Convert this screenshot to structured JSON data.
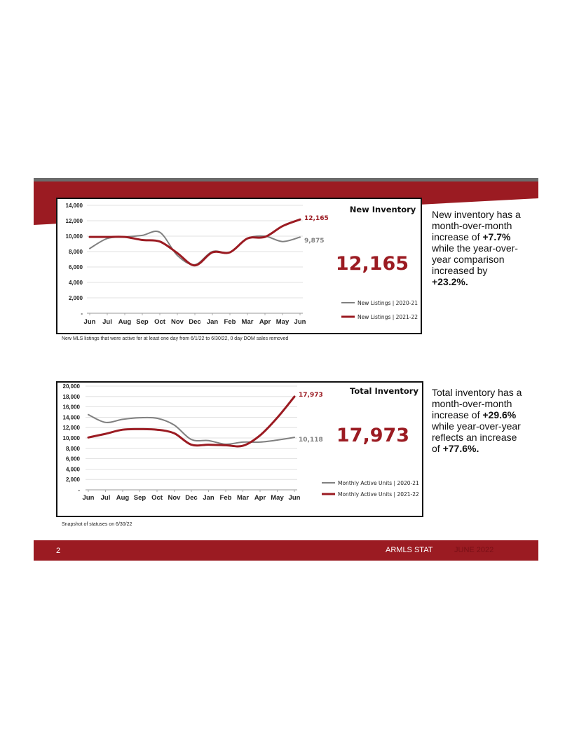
{
  "colors": {
    "accent": "#9b1b22",
    "prior_year": "#808080",
    "footer_date": "#7a1016"
  },
  "charts": [
    {
      "title": "New Inventory",
      "big_number": "12,165",
      "last_label_current": "12,165",
      "last_label_prior": "9,875",
      "note": "New MLS listings that were active for at least one day from 6/1/22 to 6/30/22, 0 day DOM sales removed",
      "commentary": {
        "pre1": "New inventory has a month-over-month increase of ",
        "val1": "+7.7%",
        "mid": " while the year-over-year comparison increased by ",
        "val2": "+23.2%.",
        "post": ""
      },
      "y_tick_labels": [
        "-",
        "2,000",
        "4,000",
        "6,000",
        "8,000",
        "10,000",
        "12,000",
        "14,000"
      ]
    },
    {
      "title": "Total Inventory",
      "big_number": "17,973",
      "last_label_current": "17,973",
      "last_label_prior": "10,118",
      "note": "Snapshot of statuses on 6/30/22",
      "commentary": {
        "pre1": "Total inventory has a month-over-month increase of ",
        "val1": "+29.6%",
        "mid": " while year-over-year reflects an increase of ",
        "val2": "+77.6%.",
        "post": ""
      },
      "y_tick_labels": [
        "-",
        "2,000",
        "4,000",
        "6,000",
        "8,000",
        "10,000",
        "12,000",
        "14,000",
        "16,000",
        "18,000",
        "20,000"
      ]
    }
  ],
  "chart_data": [
    {
      "type": "line",
      "title": "New Inventory",
      "categories": [
        "Jun",
        "Jul",
        "Aug",
        "Sep",
        "Oct",
        "Nov",
        "Dec",
        "Jan",
        "Feb",
        "Mar",
        "Apr",
        "May",
        "Jun"
      ],
      "ylim": [
        0,
        14000
      ],
      "y_ticks": [
        0,
        2000,
        4000,
        6000,
        8000,
        10000,
        12000,
        14000
      ],
      "grid": true,
      "legend": "bottom-right",
      "series": [
        {
          "name": "New Listings | 2020-21",
          "color": "#808080",
          "values": [
            8400,
            9700,
            9900,
            10100,
            10500,
            7500,
            6300,
            8000,
            7900,
            9700,
            10000,
            9300,
            9875
          ]
        },
        {
          "name": "New Listings | 2021-22",
          "color": "#9b1b22",
          "values": [
            9900,
            9900,
            9900,
            9500,
            9300,
            7800,
            6200,
            7900,
            7900,
            9700,
            9900,
            11300,
            12165
          ]
        }
      ]
    },
    {
      "type": "line",
      "title": "Total Inventory",
      "categories": [
        "Jun",
        "Jul",
        "Aug",
        "Sep",
        "Oct",
        "Nov",
        "Dec",
        "Jan",
        "Feb",
        "Mar",
        "Apr",
        "May",
        "Jun"
      ],
      "ylim": [
        0,
        20000
      ],
      "y_ticks": [
        0,
        2000,
        4000,
        6000,
        8000,
        10000,
        12000,
        14000,
        16000,
        18000,
        20000
      ],
      "grid": true,
      "legend": "bottom-right",
      "series": [
        {
          "name": "Monthly Active Units | 2020-21",
          "color": "#808080",
          "values": [
            14500,
            13000,
            13600,
            13900,
            13800,
            12500,
            9700,
            9500,
            8800,
            9200,
            9200,
            9600,
            10118
          ]
        },
        {
          "name": "Monthly Active Units | 2021-22",
          "color": "#9b1b22",
          "values": [
            10100,
            10800,
            11600,
            11700,
            11600,
            10900,
            8700,
            8700,
            8600,
            8500,
            10500,
            13900,
            17973
          ]
        }
      ]
    }
  ],
  "footer": {
    "page_number": "2",
    "name": "ARMLS STAT",
    "date": "JUNE 2022"
  }
}
